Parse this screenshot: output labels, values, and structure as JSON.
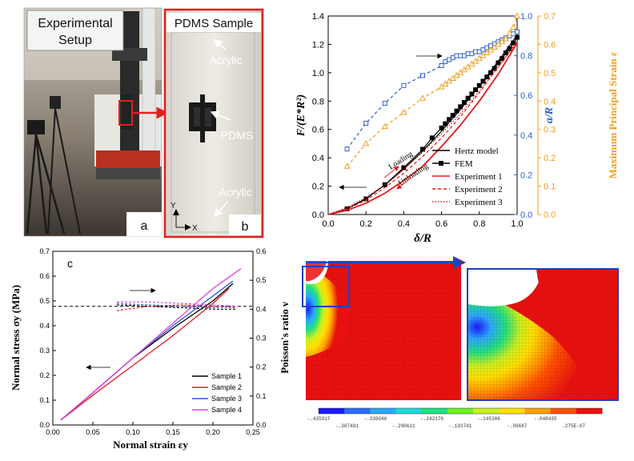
{
  "panel_a": {
    "title_line1": "Experimental",
    "title_line2": "Setup",
    "letter": "a"
  },
  "panel_b": {
    "title": "PDMS Sample",
    "acrylic_top": "Acrylic",
    "pdms": "PDMS",
    "acrylic_bottom": "Acrylic",
    "axis_y": "Y",
    "axis_x": "X",
    "letter": "b"
  },
  "chart_data": [
    {
      "type": "line",
      "id": "top-right",
      "xlabel": "δ/R",
      "ylabel_left": "F/(E*R²)",
      "ylabel_right1": "a/R",
      "ylabel_right2": "Maximum Principal Strain ε",
      "xlim": [
        0.0,
        1.0
      ],
      "ylim_left": [
        0.0,
        1.4
      ],
      "ylim_right1": [
        0.0,
        1.0
      ],
      "ylim_right2": [
        0.0,
        0.7
      ],
      "x_ticks": [
        "0.0",
        "0.2",
        "0.4",
        "0.6",
        "0.8",
        "1.0"
      ],
      "y_ticks_left": [
        "0.0",
        "0.2",
        "0.4",
        "0.6",
        "0.8",
        "1.0",
        "1.2",
        "1.4"
      ],
      "y_ticks_right1": [
        "0.0",
        "0.2",
        "0.4",
        "0.6",
        "0.8",
        "1.0"
      ],
      "y_ticks_right2": [
        "0.0",
        "0.1",
        "0.2",
        "0.3",
        "0.4",
        "0.5",
        "0.6",
        "0.7"
      ],
      "annotations": {
        "loading": "Loading",
        "unloading": "Unloading"
      },
      "legend_position": "bottom-right",
      "series": [
        {
          "name": "Hertz model",
          "color": "#000000",
          "style": "solid",
          "x": [
            0.0,
            0.1,
            0.2,
            0.3,
            0.4,
            0.5,
            0.6,
            0.7,
            0.8,
            0.9,
            1.0
          ],
          "y": [
            0.0,
            0.04,
            0.113,
            0.208,
            0.32,
            0.447,
            0.588,
            0.741,
            0.906,
            1.081,
            1.266
          ]
        },
        {
          "name": "FEM",
          "color": "#000000",
          "style": "solid-square",
          "x": [
            0.1,
            0.2,
            0.3,
            0.4,
            0.5,
            0.55,
            0.6,
            0.62,
            0.64,
            0.66,
            0.68,
            0.7,
            0.72,
            0.74,
            0.76,
            0.78,
            0.8,
            0.82,
            0.84,
            0.86,
            0.88,
            0.9,
            0.92,
            0.94,
            0.96,
            0.98,
            1.0
          ],
          "y": [
            0.04,
            0.11,
            0.21,
            0.33,
            0.46,
            0.54,
            0.61,
            0.64,
            0.67,
            0.7,
            0.73,
            0.76,
            0.79,
            0.82,
            0.85,
            0.88,
            0.91,
            0.94,
            0.97,
            1.0,
            1.03,
            1.07,
            1.1,
            1.14,
            1.17,
            1.21,
            1.25
          ]
        },
        {
          "name": "Experiment 1",
          "color": "#e41a1c",
          "style": "solid",
          "x": [
            0.0,
            0.1,
            0.2,
            0.3,
            0.4,
            0.5,
            0.6,
            0.7,
            0.8,
            0.9,
            1.0
          ],
          "y": [
            0.0,
            0.03,
            0.08,
            0.15,
            0.24,
            0.34,
            0.48,
            0.63,
            0.8,
            0.99,
            1.21
          ]
        },
        {
          "name": "Experiment 2",
          "color": "#e41a1c",
          "style": "dashed",
          "x": [
            0.0,
            0.1,
            0.2,
            0.3,
            0.4,
            0.5,
            0.6,
            0.7,
            0.8,
            0.9,
            1.0
          ],
          "y": [
            0.0,
            0.04,
            0.1,
            0.19,
            0.29,
            0.41,
            0.54,
            0.69,
            0.86,
            1.04,
            1.22
          ]
        },
        {
          "name": "Experiment 3",
          "color": "#e41a1c",
          "style": "dotted",
          "x": [
            0.0,
            0.1,
            0.2,
            0.3,
            0.4,
            0.5,
            0.6,
            0.7,
            0.8,
            0.9,
            1.0
          ],
          "y": [
            0.0,
            0.05,
            0.12,
            0.21,
            0.32,
            0.44,
            0.57,
            0.71,
            0.87,
            1.04,
            1.22
          ]
        },
        {
          "axis": "right1",
          "color": "#2f5fd0",
          "style": "dashed-square-open",
          "x": [
            0.1,
            0.2,
            0.3,
            0.4,
            0.5,
            0.6,
            0.62,
            0.64,
            0.66,
            0.68,
            0.7,
            0.72,
            0.74,
            0.76,
            0.78,
            0.8,
            0.82,
            0.84,
            0.86,
            0.88,
            0.9,
            0.92,
            0.94,
            0.96,
            0.98,
            1.0
          ],
          "y": [
            0.33,
            0.46,
            0.56,
            0.65,
            0.7,
            0.75,
            0.77,
            0.78,
            0.79,
            0.8,
            0.8,
            0.8,
            0.81,
            0.81,
            0.82,
            0.82,
            0.83,
            0.84,
            0.85,
            0.86,
            0.87,
            0.88,
            0.89,
            0.9,
            0.91,
            0.92
          ]
        },
        {
          "axis": "right2",
          "color": "#f0a020",
          "style": "dashed-triangle-open",
          "x": [
            0.1,
            0.2,
            0.3,
            0.4,
            0.5,
            0.6,
            0.62,
            0.64,
            0.66,
            0.68,
            0.7,
            0.72,
            0.74,
            0.76,
            0.78,
            0.8,
            0.82,
            0.84,
            0.86,
            0.88,
            0.9,
            0.92,
            0.94,
            0.96,
            0.98,
            1.0
          ],
          "y": [
            0.17,
            0.25,
            0.31,
            0.36,
            0.41,
            0.45,
            0.46,
            0.47,
            0.48,
            0.49,
            0.5,
            0.51,
            0.52,
            0.53,
            0.54,
            0.55,
            0.56,
            0.57,
            0.58,
            0.59,
            0.6,
            0.61,
            0.62,
            0.64,
            0.66,
            0.7
          ]
        }
      ]
    },
    {
      "type": "line",
      "id": "bottom-left",
      "letter": "c",
      "xlabel": "Normal strain εy",
      "ylabel_left": "Normal stress σy (MPa)",
      "ylabel_right": "Poisson's ratio ν",
      "xlim": [
        0.0,
        0.25
      ],
      "ylim_left": [
        0.0,
        0.7
      ],
      "ylim_right": [
        0.0,
        0.6
      ],
      "x_ticks": [
        "0.00",
        "0.05",
        "0.10",
        "0.15",
        "0.20",
        "0.25"
      ],
      "y_ticks_left": [
        "0.0",
        "0.1",
        "0.2",
        "0.3",
        "0.4",
        "0.5",
        "0.6",
        "0.7"
      ],
      "y_ticks_right": [
        "0.0",
        "0.1",
        "0.2",
        "0.3",
        "0.4",
        "0.5",
        "0.6"
      ],
      "legend_position": "bottom-right",
      "reference_line_nu": 0.41,
      "series": [
        {
          "name": "Sample 1",
          "color": "#000000",
          "x": [
            0.01,
            0.05,
            0.1,
            0.15,
            0.2,
            0.225
          ],
          "y": [
            0.02,
            0.13,
            0.27,
            0.39,
            0.5,
            0.57
          ],
          "nu_x": [
            0.08,
            0.12,
            0.16,
            0.2,
            0.23
          ],
          "nu_y": [
            0.415,
            0.41,
            0.405,
            0.4,
            0.4
          ]
        },
        {
          "name": "Sample 2",
          "color": "#e41a1c",
          "x": [
            0.01,
            0.05,
            0.1,
            0.15,
            0.2,
            0.22
          ],
          "y": [
            0.02,
            0.12,
            0.24,
            0.36,
            0.49,
            0.55
          ],
          "nu_x": [
            0.08,
            0.12,
            0.16,
            0.2,
            0.23
          ],
          "nu_y": [
            0.395,
            0.41,
            0.415,
            0.41,
            0.405
          ]
        },
        {
          "name": "Sample 3",
          "color": "#2f5fd0",
          "x": [
            0.01,
            0.05,
            0.1,
            0.15,
            0.2,
            0.225
          ],
          "y": [
            0.02,
            0.13,
            0.27,
            0.4,
            0.52,
            0.58
          ],
          "nu_x": [
            0.08,
            0.12,
            0.16,
            0.2,
            0.23
          ],
          "nu_y": [
            0.42,
            0.415,
            0.41,
            0.405,
            0.41
          ]
        },
        {
          "name": "Sample 4",
          "color": "#e040e0",
          "x": [
            0.01,
            0.05,
            0.1,
            0.15,
            0.2,
            0.235
          ],
          "y": [
            0.02,
            0.13,
            0.27,
            0.41,
            0.55,
            0.63
          ],
          "nu_x": [
            0.08,
            0.12,
            0.16,
            0.2,
            0.23
          ],
          "nu_y": [
            0.425,
            0.425,
            0.42,
            0.415,
            0.41
          ]
        }
      ]
    }
  ],
  "fem_legend": {
    "values_top": [
      "-.435917",
      "-.339046",
      "-.242176",
      "-.145306",
      "-.048435"
    ],
    "values_bottom": [
      "-.387481",
      "-.290611",
      "-.193741",
      "-.09687",
      ".275E-07"
    ],
    "colors": [
      "#1a1aff",
      "#2b6cff",
      "#2aa8ff",
      "#20d8d8",
      "#20e080",
      "#70f020",
      "#c8f020",
      "#ffe000",
      "#ffa000",
      "#ff5000",
      "#e81010"
    ]
  }
}
